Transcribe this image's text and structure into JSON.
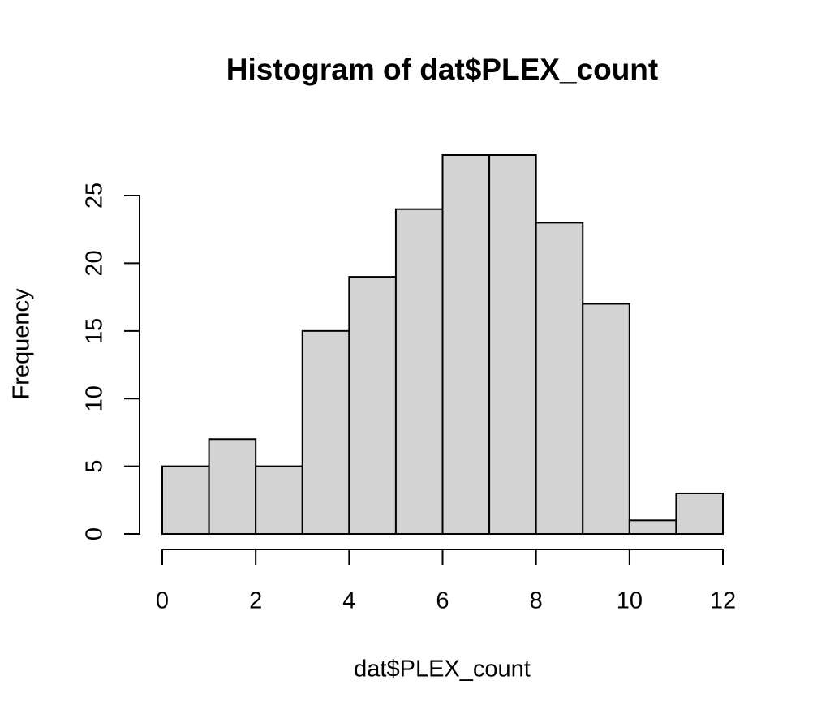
{
  "chart_data": {
    "type": "histogram",
    "title": "Histogram of dat$PLEX_count",
    "x_label": "dat$PLEX_count",
    "y_label": "Frequency",
    "bins": [
      0,
      1,
      2,
      3,
      4,
      5,
      6,
      7,
      8,
      9,
      10,
      11,
      12
    ],
    "counts": [
      5,
      7,
      5,
      15,
      19,
      24,
      28,
      28,
      23,
      17,
      1,
      3
    ],
    "color": "#d3d3d3",
    "xlim": [
      0,
      12
    ],
    "xticks": [
      0,
      2,
      4,
      6,
      8,
      10,
      12
    ],
    "ylim": [
      0,
      28
    ],
    "yticks": [
      0,
      5,
      10,
      15,
      20,
      25
    ]
  }
}
